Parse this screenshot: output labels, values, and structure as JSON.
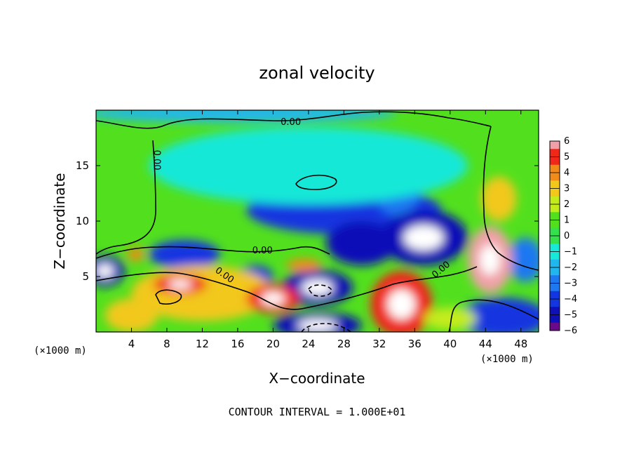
{
  "chart_data": {
    "type": "heatmap",
    "title": "zonal velocity",
    "xlabel": "X−coordinate",
    "ylabel": "Z−coordinate",
    "x_unit": "(×1000 m)",
    "y_unit": "(×1000 m)",
    "xlim": [
      0,
      50
    ],
    "ylim": [
      0,
      20
    ],
    "x_ticks": [
      4,
      8,
      12,
      16,
      20,
      24,
      28,
      32,
      36,
      40,
      44,
      48
    ],
    "y_ticks": [
      5,
      10,
      15
    ],
    "colorbar": {
      "min": -6,
      "max": 6,
      "ticks": [
        {
          "value": 6,
          "label": "6"
        },
        {
          "value": 5,
          "label": "5"
        },
        {
          "value": 4,
          "label": "4"
        },
        {
          "value": 3,
          "label": "3"
        },
        {
          "value": 2,
          "label": "2"
        },
        {
          "value": 1,
          "label": "1"
        },
        {
          "value": 0,
          "label": "0"
        },
        {
          "value": -1,
          "label": "−1"
        },
        {
          "value": -2,
          "label": "−2"
        },
        {
          "value": -3,
          "label": "−3"
        },
        {
          "value": -4,
          "label": "−4"
        },
        {
          "value": -5,
          "label": "−5"
        },
        {
          "value": -6,
          "label": "−6"
        }
      ]
    },
    "contour_labels": [
      {
        "text": "0.00",
        "x": 22,
        "y": 18.9,
        "rotate": 0
      },
      {
        "text": "0.00",
        "x": 6.8,
        "y": 15.5,
        "rotate": 90
      },
      {
        "text": "0.00",
        "x": 18.8,
        "y": 7.3,
        "rotate": 0
      },
      {
        "text": "0.00",
        "x": 14.5,
        "y": 5.1,
        "rotate": 35
      },
      {
        "text": "0.00",
        "x": 39,
        "y": 5.6,
        "rotate": -40
      }
    ],
    "field_features": [
      {
        "kind": "negative",
        "x": 28,
        "y": 11,
        "rx": 11,
        "ry": 2.2,
        "value": -3.5
      },
      {
        "kind": "negative",
        "x": 34,
        "y": 14,
        "rx": 3,
        "ry": 3.5,
        "value": -3
      },
      {
        "kind": "negative",
        "x": 37,
        "y": 8.5,
        "rx": 5,
        "ry": 2.5,
        "value": -5
      },
      {
        "kind": "negative",
        "x": 30,
        "y": 8,
        "rx": 4,
        "ry": 2,
        "value": -4.5
      },
      {
        "kind": "negative",
        "x": 10,
        "y": 7,
        "rx": 4,
        "ry": 1.3,
        "value": -4
      },
      {
        "kind": "negative",
        "x": 25,
        "y": 4,
        "rx": 4,
        "ry": 1.6,
        "value": -5
      },
      {
        "kind": "negative",
        "x": 18,
        "y": 5,
        "rx": 2,
        "ry": 1,
        "value": -4
      },
      {
        "kind": "negative",
        "x": 1,
        "y": 5.5,
        "rx": 2.2,
        "ry": 1.4,
        "value": -5
      },
      {
        "kind": "negative",
        "x": 46,
        "y": 1.3,
        "rx": 5,
        "ry": 1.8,
        "value": -4
      },
      {
        "kind": "negative",
        "x": 25,
        "y": 0.6,
        "rx": 5,
        "ry": 1.2,
        "value": -5
      },
      {
        "kind": "negative",
        "x": 48.5,
        "y": 6.5,
        "rx": 2,
        "ry": 2,
        "value": -2.5
      },
      {
        "kind": "weakneg",
        "x": 24,
        "y": 15,
        "rx": 18,
        "ry": 3.5,
        "value": -1.2
      },
      {
        "kind": "weakneg",
        "x": 16,
        "y": 19.7,
        "rx": 18,
        "ry": 0.8,
        "value": -1.5
      },
      {
        "kind": "positive",
        "x": 12,
        "y": 3.5,
        "rx": 8,
        "ry": 2.5,
        "value": 3
      },
      {
        "kind": "positive",
        "x": 9.5,
        "y": 4.3,
        "rx": 3,
        "ry": 0.9,
        "value": 5.5
      },
      {
        "kind": "positive",
        "x": 20,
        "y": 3,
        "rx": 3,
        "ry": 1.3,
        "value": 5
      },
      {
        "kind": "positive",
        "x": 34.5,
        "y": 2.5,
        "rx": 3.5,
        "ry": 3,
        "value": 5.5
      },
      {
        "kind": "positive",
        "x": 44.5,
        "y": 6.5,
        "rx": 2.5,
        "ry": 3,
        "value": 6
      },
      {
        "kind": "positive",
        "x": 45.5,
        "y": 12,
        "rx": 2,
        "ry": 2,
        "value": 3.5
      },
      {
        "kind": "positive",
        "x": 4,
        "y": 1.5,
        "rx": 3,
        "ry": 1.5,
        "value": 3.5
      },
      {
        "kind": "positive",
        "x": 4.5,
        "y": 7,
        "rx": 1,
        "ry": 0.6,
        "value": 4.5
      },
      {
        "kind": "positive",
        "x": 23.5,
        "y": 6,
        "rx": 2,
        "ry": 0.6,
        "value": 4
      },
      {
        "kind": "positive",
        "x": 40,
        "y": 1.2,
        "rx": 3,
        "ry": 1,
        "value": 2.5
      }
    ]
  },
  "footer": "CONTOUR INTERVAL = 1.000E+01"
}
